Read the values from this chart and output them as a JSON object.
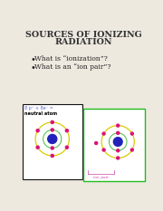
{
  "title_line1": "SOURCES OF IONIZING",
  "title_line2": "RADIATION",
  "bullet1": "What is “ionization”?",
  "bullet2": "What is an “ion pair”?",
  "bg_color": "#ede9df",
  "title_color": "#333333",
  "bullet_color": "#222222",
  "atom_nucleus_color": "#2222bb",
  "atom_electron_color": "#dd1177",
  "orbit1_color": "#44bb44",
  "orbit2_color": "#ddcc00",
  "box1_border": "#111111",
  "box2_border": "#22bb22",
  "label1_color": "#5566dd",
  "label2_color": "#cc44aa",
  "ion_pair_label": "ion pair"
}
